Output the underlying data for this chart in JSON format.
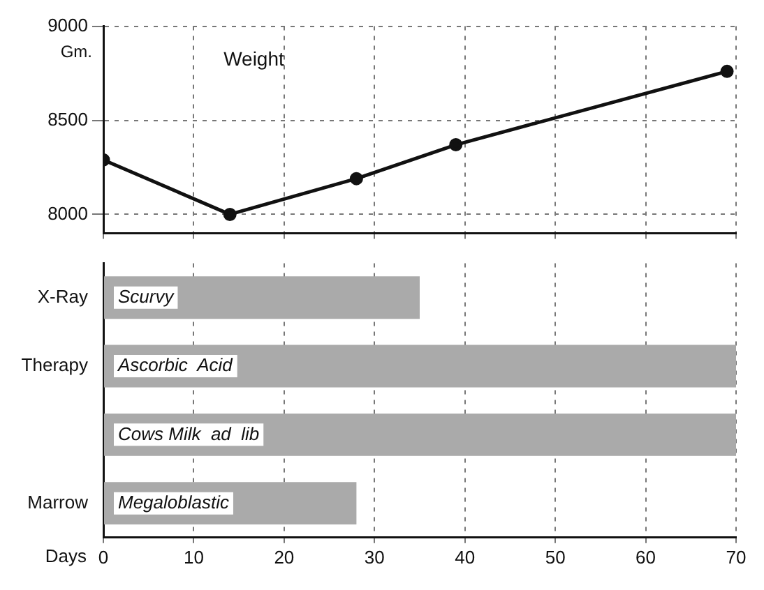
{
  "chart_data": [
    {
      "type": "line",
      "title": "Weight",
      "ylabel": "Gm.",
      "x": [
        0,
        14,
        28,
        39,
        69
      ],
      "values": [
        8290,
        8000,
        8190,
        8370,
        8760
      ],
      "color": "#111111",
      "xlim": [
        0,
        70
      ],
      "xticks": [
        0,
        10,
        20,
        30,
        40,
        50,
        60,
        70
      ],
      "ylim": [
        7900,
        9000
      ],
      "yticks": [
        8000,
        8500,
        9000
      ],
      "grid": true,
      "marker": "circle",
      "line_style": "solid",
      "tick_labels": "y",
      "legend": false
    },
    {
      "type": "bar",
      "orientation": "horizontal",
      "categories": [
        "X-Ray",
        "Therapy",
        null,
        "Marrow"
      ],
      "base": [
        0,
        0,
        0,
        0
      ],
      "values": [
        35,
        70,
        70,
        28
      ],
      "value_labels": [
        "Scurvy",
        "Ascorbic  Acid",
        "Cows Milk  ad  lib",
        "Megaloblastic"
      ],
      "color": "#aaaaaa",
      "xlabel": "Days",
      "xlim": [
        0,
        70
      ],
      "xticks": [
        0,
        10,
        20,
        30,
        40,
        50,
        60,
        70
      ],
      "grid": "x",
      "legend": false
    }
  ]
}
